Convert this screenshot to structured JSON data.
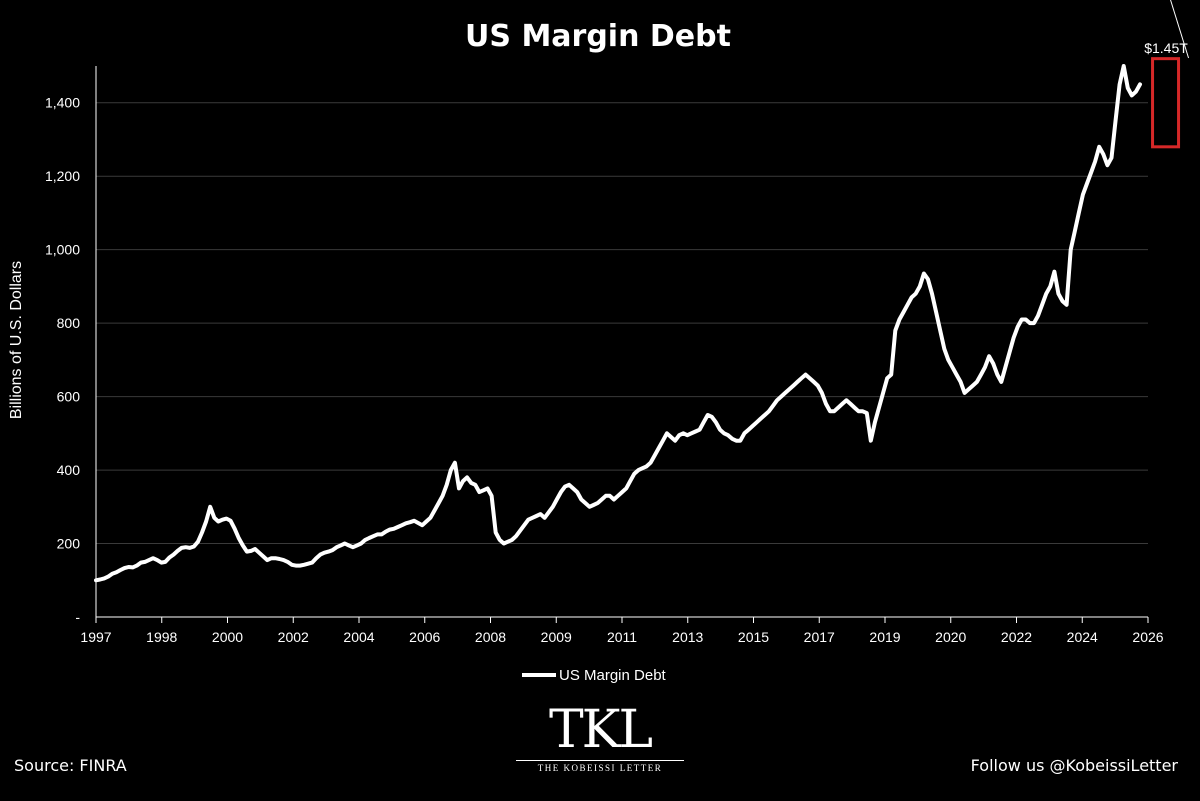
{
  "chart_data": {
    "type": "line",
    "title": "US Margin Debt",
    "ylabel": "Billions of U.S. Dollars",
    "xlabel": "",
    "ylim": [
      0,
      1500
    ],
    "y_ticks": [
      {
        "value": 0,
        "label": "-"
      },
      {
        "value": 200,
        "label": "200"
      },
      {
        "value": 400,
        "label": "400"
      },
      {
        "value": 600,
        "label": "600"
      },
      {
        "value": 800,
        "label": "800"
      },
      {
        "value": 1000,
        "label": "1,000"
      },
      {
        "value": 1200,
        "label": "1,200"
      },
      {
        "value": 1400,
        "label": "1,400"
      }
    ],
    "x_tick_labels": [
      "1997",
      "1998",
      "2000",
      "2002",
      "2004",
      "2006",
      "2008",
      "2009",
      "2011",
      "2013",
      "2015",
      "2017",
      "2019",
      "2020",
      "2022",
      "2024",
      "2026"
    ],
    "grid": "horizontal",
    "legend": "bottom-center",
    "series": [
      {
        "name": "US Margin Debt",
        "color": "#ffffff",
        "values": [
          100,
          102,
          105,
          110,
          118,
          122,
          128,
          133,
          136,
          135,
          140,
          148,
          150,
          155,
          160,
          155,
          148,
          150,
          162,
          170,
          180,
          188,
          190,
          188,
          192,
          205,
          230,
          260,
          300,
          270,
          260,
          265,
          268,
          262,
          240,
          215,
          195,
          178,
          180,
          185,
          175,
          165,
          155,
          160,
          160,
          158,
          155,
          150,
          142,
          140,
          140,
          142,
          145,
          148,
          160,
          170,
          175,
          178,
          182,
          190,
          195,
          200,
          195,
          190,
          195,
          200,
          210,
          215,
          220,
          225,
          225,
          232,
          238,
          240,
          245,
          250,
          255,
          258,
          262,
          256,
          250,
          260,
          270,
          290,
          310,
          330,
          360,
          400,
          420,
          350,
          370,
          380,
          365,
          360,
          340,
          345,
          350,
          330,
          230,
          210,
          200,
          205,
          210,
          220,
          235,
          250,
          265,
          270,
          275,
          280,
          270,
          285,
          300,
          320,
          340,
          355,
          360,
          350,
          340,
          320,
          310,
          300,
          305,
          310,
          320,
          330,
          330,
          320,
          330,
          340,
          350,
          370,
          390,
          400,
          405,
          410,
          420,
          440,
          460,
          480,
          500,
          490,
          480,
          495,
          500,
          495,
          500,
          505,
          510,
          530,
          550,
          545,
          530,
          510,
          500,
          495,
          485,
          480,
          480,
          500,
          510,
          520,
          530,
          540,
          550,
          560,
          575,
          590,
          600,
          610,
          620,
          630,
          640,
          650,
          660,
          650,
          640,
          630,
          610,
          580,
          560,
          560,
          570,
          580,
          590,
          580,
          570,
          560,
          560,
          555,
          480,
          530,
          570,
          610,
          650,
          660,
          780,
          810,
          830,
          850,
          870,
          880,
          900,
          935,
          920,
          880,
          830,
          780,
          730,
          700,
          680,
          660,
          640,
          610,
          620,
          630,
          640,
          660,
          680,
          710,
          690,
          660,
          640,
          680,
          720,
          760,
          790,
          810,
          810,
          800,
          800,
          820,
          850,
          880,
          900,
          940,
          880,
          860,
          850,
          1000,
          1050,
          1100,
          1150,
          1180,
          1210,
          1240,
          1280,
          1260,
          1230,
          1250,
          1350,
          1450,
          1500,
          1440,
          1420,
          1430,
          1450
        ]
      }
    ],
    "annotations": [
      {
        "text": "$1.45T",
        "target_index": 263,
        "box_y_range": [
          1280,
          1520
        ]
      }
    ]
  },
  "footer": {
    "source": "Source: FINRA",
    "follow": "Follow us @KobeissiLetter"
  },
  "logo": {
    "mark": "TKL",
    "subtitle": "THE KOBEISSI LETTER"
  }
}
